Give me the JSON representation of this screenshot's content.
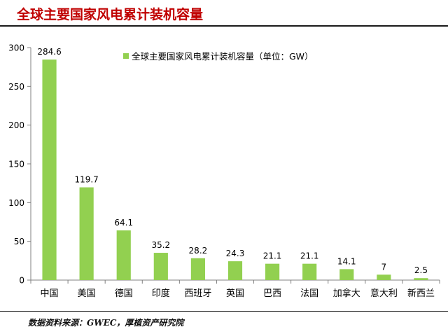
{
  "header": {
    "title": "全球主要国家风电累计装机容量"
  },
  "footer": {
    "source": "数据资料来源：GWEC，厚植资产研究院"
  },
  "colors": {
    "bar": "#92d050",
    "title": "#c00000",
    "axis": "#808080",
    "text": "#000000"
  },
  "chart_data": {
    "type": "bar",
    "title": "",
    "xlabel": "",
    "ylabel": "",
    "ylim": [
      0,
      300
    ],
    "yticks": [
      0,
      50,
      100,
      150,
      200,
      250,
      300
    ],
    "legend_position": "top",
    "grid": false,
    "categories": [
      "中国",
      "美国",
      "德国",
      "印度",
      "西班牙",
      "英国",
      "巴西",
      "法国",
      "加拿大",
      "意大利",
      "新西兰"
    ],
    "series": [
      {
        "name": "全球主要国家风电累计装机容量（单位：GW）",
        "values": [
          284.6,
          119.7,
          64.1,
          35.2,
          28.2,
          24.3,
          21.1,
          21.1,
          14.1,
          7,
          2.5
        ],
        "labels": [
          "284.6",
          "119.7",
          "64.1",
          "35.2",
          "28.2",
          "24.3",
          "21.1",
          "21.1",
          "14.1",
          "7",
          "2.5"
        ]
      }
    ]
  }
}
